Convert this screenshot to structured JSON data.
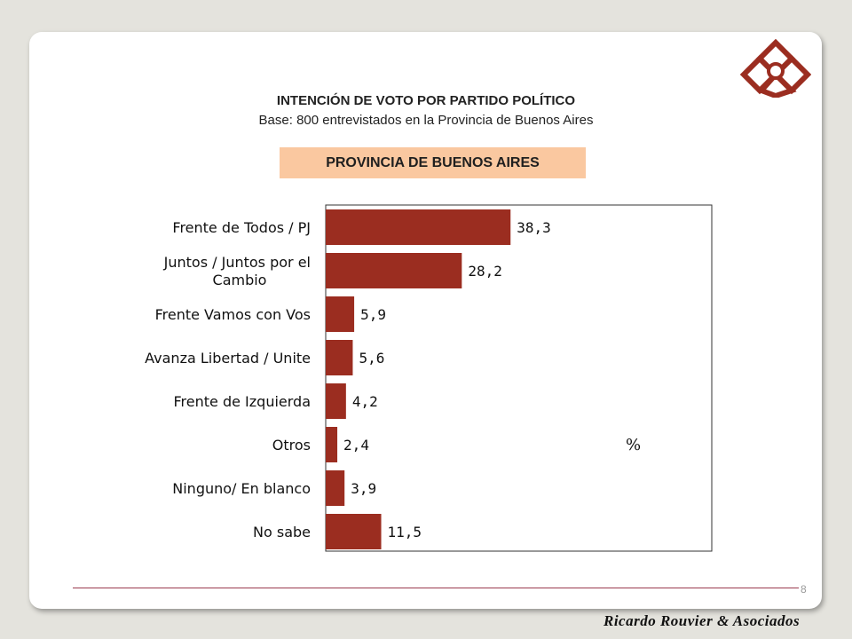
{
  "header": {
    "title": "INTENCIÓN DE VOTO POR PARTIDO POLÍTICO",
    "subtitle": "Base: 800 entrevistados en la Provincia de Buenos Aires",
    "province": "PROVINCIA DE BUENOS AIRES"
  },
  "chart_data": {
    "type": "bar",
    "orientation": "horizontal",
    "categories": [
      [
        "Frente de Todos / PJ"
      ],
      [
        "Juntos / Juntos por el",
        "Cambio"
      ],
      [
        "Frente Vamos con Vos"
      ],
      [
        "Avanza Libertad / Unite"
      ],
      [
        "Frente de Izquierda"
      ],
      [
        "Otros"
      ],
      [
        "Ninguno/ En blanco"
      ],
      [
        "No sabe"
      ]
    ],
    "values": [
      38.3,
      28.2,
      5.9,
      5.6,
      4.2,
      2.4,
      3.9,
      11.5
    ],
    "value_labels": [
      "38,3",
      "28,2",
      "5,9",
      "5,6",
      "4,2",
      "2,4",
      "3,9",
      "11,5"
    ],
    "unit_label": "%",
    "xlim": [
      0,
      100
    ],
    "bar_color": "#9b2d20",
    "grid": false
  },
  "footer": {
    "page_number": "8",
    "brand": "Ricardo Rouvier & Asociados"
  },
  "colors": {
    "background": "#e4e3dd",
    "accent_box": "#fac8a0",
    "logo": "#9b2d20",
    "footer_line": "#9a3a4e"
  }
}
